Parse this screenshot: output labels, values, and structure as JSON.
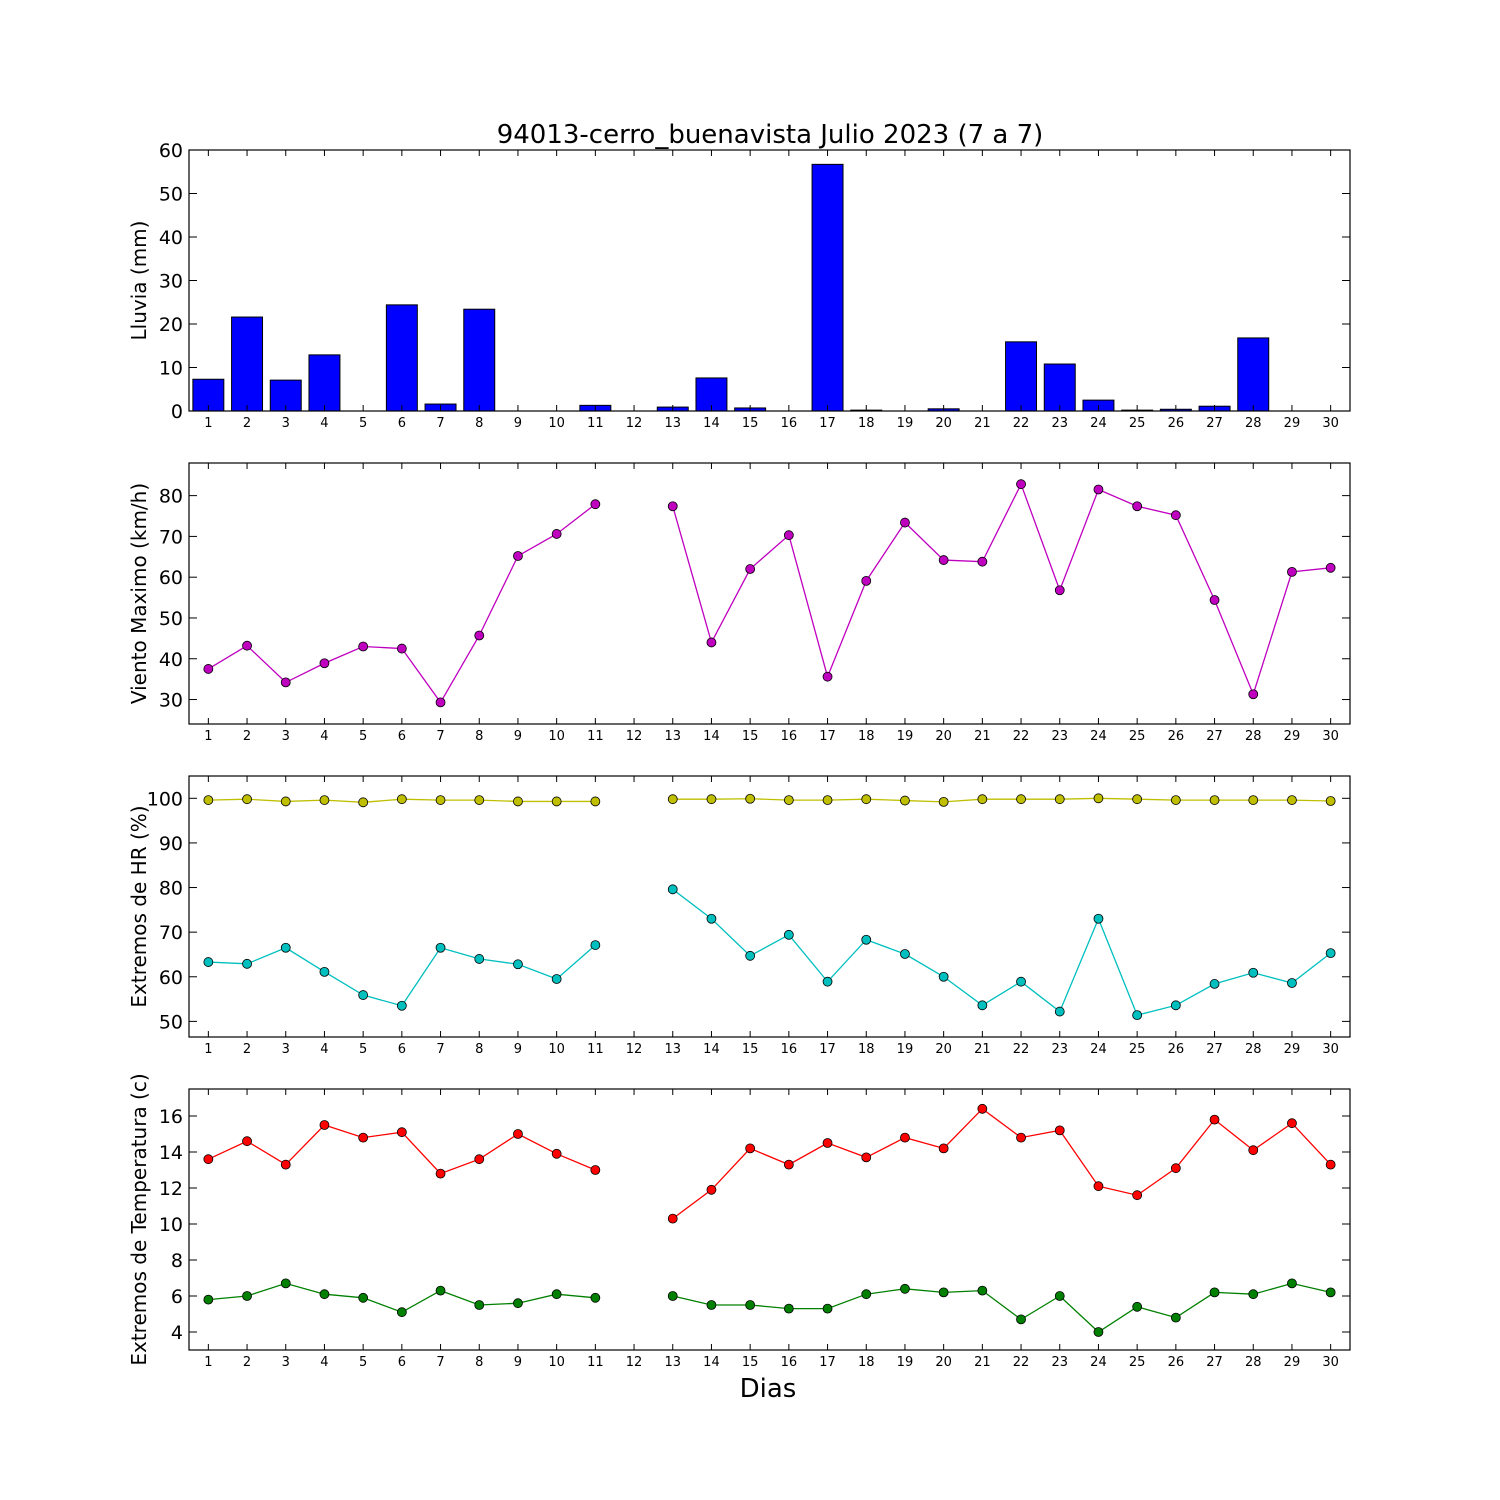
{
  "title": "94013-cerro_buenavista Julio 2023  (7 a 7)",
  "xlabel": "Dias",
  "chart_data": [
    {
      "type": "bar",
      "ylabel": "Lluvia (mm)",
      "ylim": [
        0,
        60
      ],
      "yticks": [
        0,
        10,
        20,
        30,
        40,
        50,
        60
      ],
      "xlim": [
        0.5,
        30.5
      ],
      "categories": [
        1,
        2,
        3,
        4,
        5,
        6,
        7,
        8,
        9,
        10,
        11,
        12,
        13,
        14,
        15,
        16,
        17,
        18,
        19,
        20,
        21,
        22,
        23,
        24,
        25,
        26,
        27,
        28,
        29,
        30
      ],
      "color": "#0000ff",
      "series": [
        {
          "values": [
            7.3,
            21.6,
            7.1,
            12.9,
            0,
            24.4,
            1.6,
            23.4,
            0,
            0,
            1.3,
            0,
            0.9,
            7.6,
            0.7,
            0,
            56.7,
            0.2,
            0,
            0.5,
            0,
            15.9,
            10.8,
            2.5,
            0.2,
            0.4,
            1.1,
            16.8,
            0,
            0
          ]
        }
      ]
    },
    {
      "type": "line",
      "ylabel": "Viento Maximo (km/h)",
      "ylim": [
        24,
        88
      ],
      "yticks": [
        30,
        40,
        50,
        60,
        70,
        80
      ],
      "xlim": [
        0.5,
        30.5
      ],
      "x": [
        1,
        2,
        3,
        4,
        5,
        6,
        7,
        8,
        9,
        10,
        11,
        12,
        13,
        14,
        15,
        16,
        17,
        18,
        19,
        20,
        21,
        22,
        23,
        24,
        25,
        26,
        27,
        28,
        29,
        30
      ],
      "series": [
        {
          "color": "#bf00bf",
          "values": [
            37.5,
            43.2,
            34.2,
            38.9,
            43.0,
            42.5,
            29.3,
            45.7,
            65.2,
            70.6,
            77.9,
            null,
            77.4,
            44.0,
            62.0,
            70.3,
            35.6,
            59.1,
            73.4,
            64.2,
            63.8,
            82.8,
            56.8,
            81.5,
            77.4,
            75.2,
            54.4,
            31.3,
            61.3,
            62.3
          ]
        }
      ]
    },
    {
      "type": "line",
      "ylabel": "Extremos de HR (%)",
      "ylim": [
        46.5,
        105
      ],
      "yticks": [
        50,
        60,
        70,
        80,
        90,
        100
      ],
      "xlim": [
        0.5,
        30.5
      ],
      "x": [
        1,
        2,
        3,
        4,
        5,
        6,
        7,
        8,
        9,
        10,
        11,
        12,
        13,
        14,
        15,
        16,
        17,
        18,
        19,
        20,
        21,
        22,
        23,
        24,
        25,
        26,
        27,
        28,
        29,
        30
      ],
      "series": [
        {
          "color": "#bfbf00",
          "values": [
            99.6,
            99.8,
            99.3,
            99.6,
            99.1,
            99.8,
            99.6,
            99.6,
            99.3,
            99.3,
            99.3,
            null,
            99.8,
            99.8,
            99.9,
            99.6,
            99.6,
            99.8,
            99.5,
            99.2,
            99.8,
            99.8,
            99.8,
            100.0,
            99.8,
            99.6,
            99.6,
            99.6,
            99.6,
            99.4
          ]
        },
        {
          "color": "#00bfbf",
          "values": [
            63.3,
            62.9,
            66.5,
            61.1,
            55.9,
            53.5,
            66.5,
            64.0,
            62.8,
            59.5,
            67.1,
            null,
            79.6,
            73.0,
            64.7,
            69.4,
            58.9,
            68.3,
            65.1,
            60.0,
            53.6,
            58.9,
            52.2,
            73.0,
            51.4,
            53.6,
            58.4,
            60.9,
            58.6,
            65.3
          ]
        }
      ]
    },
    {
      "type": "line",
      "ylabel": "Extremos de Temperatura (c)",
      "ylim": [
        3,
        17.5
      ],
      "yticks": [
        4,
        6,
        8,
        10,
        12,
        14,
        16
      ],
      "xlim": [
        0.5,
        30.5
      ],
      "x": [
        1,
        2,
        3,
        4,
        5,
        6,
        7,
        8,
        9,
        10,
        11,
        12,
        13,
        14,
        15,
        16,
        17,
        18,
        19,
        20,
        21,
        22,
        23,
        24,
        25,
        26,
        27,
        28,
        29,
        30
      ],
      "series": [
        {
          "color": "#ff0000",
          "values": [
            13.6,
            14.6,
            13.3,
            15.5,
            14.8,
            15.1,
            12.8,
            13.6,
            15.0,
            13.9,
            13.0,
            null,
            10.3,
            11.9,
            14.2,
            13.3,
            14.5,
            13.7,
            14.8,
            14.2,
            16.4,
            14.8,
            15.2,
            12.1,
            11.6,
            13.1,
            15.8,
            14.1,
            15.6,
            13.3
          ]
        },
        {
          "color": "#008000",
          "values": [
            5.8,
            6.0,
            6.7,
            6.1,
            5.9,
            5.1,
            6.3,
            5.5,
            5.6,
            6.1,
            5.9,
            null,
            6.0,
            5.5,
            5.5,
            5.3,
            5.3,
            6.1,
            6.4,
            6.2,
            6.3,
            4.7,
            6.0,
            4.0,
            5.4,
            4.8,
            6.2,
            6.1,
            6.7,
            6.2
          ]
        }
      ]
    }
  ]
}
